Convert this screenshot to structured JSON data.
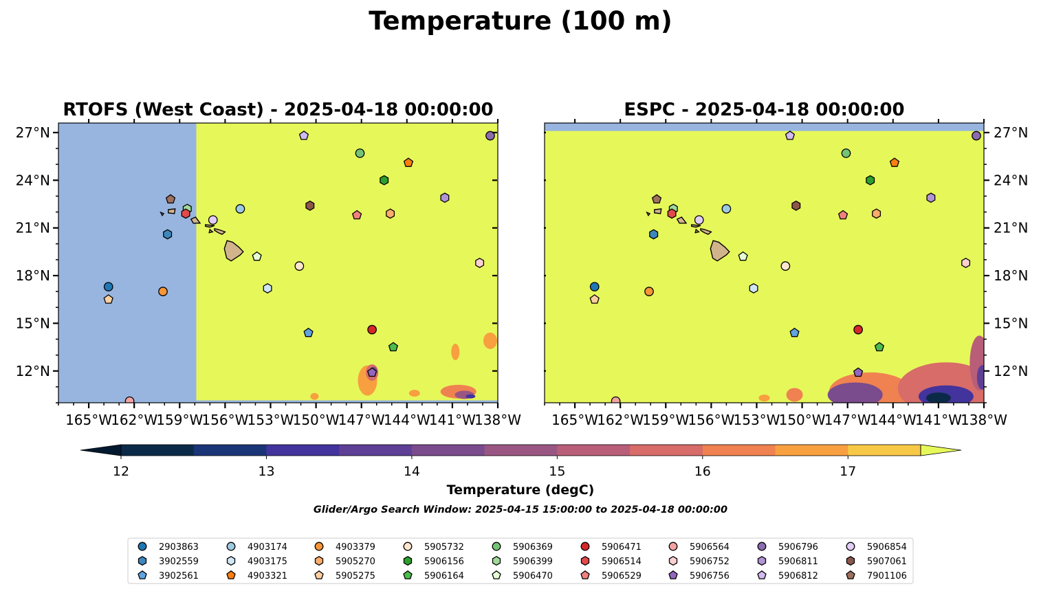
{
  "figure": {
    "title": "Temperature (100 m)",
    "colorbar_label": "Temperature (degC)",
    "search_window": "Glider/Argo Search Window: 2025-04-15 15:00:00 to 2025-04-18 00:00:00"
  },
  "colors": {
    "land": "#d2b48c",
    "nodata": "#98b5e0",
    "warm_max": "#e6f75a"
  },
  "chart_data": [
    {
      "type": "heatmap",
      "title": "RTOFS (West Coast) - 2025-04-18 00:00:00",
      "xlim": [
        -167,
        -138
      ],
      "ylim": [
        10,
        27.6
      ],
      "x_ticks": [
        "165°W",
        "162°W",
        "159°W",
        "156°W",
        "153°W",
        "150°W",
        "147°W",
        "144°W",
        "141°W",
        "138°W"
      ],
      "y_ticks": [
        "27°N",
        "24°N",
        "21°N",
        "18°N",
        "15°N",
        "12°N"
      ],
      "model_domain_west_edge_lon": -157.9,
      "dominant_value": ">17.5"
    },
    {
      "type": "heatmap",
      "title": "ESPC - 2025-04-18 00:00:00",
      "xlim": [
        -167,
        -138
      ],
      "ylim": [
        10,
        27.6
      ],
      "x_ticks": [
        "165°W",
        "162°W",
        "159°W",
        "156°W",
        "153°W",
        "150°W",
        "147°W",
        "144°W",
        "141°W",
        "138°W"
      ],
      "y_ticks": [
        "27°N",
        "24°N",
        "21°N",
        "18°N",
        "15°N",
        "12°N"
      ],
      "dominant_value": ">17.5"
    }
  ],
  "colorbar": {
    "min": 11.75,
    "max": 17.5,
    "ticks": [
      "12",
      "13",
      "14",
      "15",
      "16",
      "17"
    ],
    "levels": [
      {
        "from": 12.0,
        "to": 12.5,
        "color": "#0b2a48"
      },
      {
        "from": 12.5,
        "to": 13.0,
        "color": "#1a3478"
      },
      {
        "from": 13.0,
        "to": 13.5,
        "color": "#43339c"
      },
      {
        "from": 13.5,
        "to": 14.0,
        "color": "#5e3f96"
      },
      {
        "from": 14.0,
        "to": 14.5,
        "color": "#7a4b8d"
      },
      {
        "from": 14.5,
        "to": 15.0,
        "color": "#9a5683"
      },
      {
        "from": 15.0,
        "to": 15.5,
        "color": "#b85e78"
      },
      {
        "from": 15.5,
        "to": 16.0,
        "color": "#d76c68"
      },
      {
        "from": 16.0,
        "to": 16.5,
        "color": "#ef8250"
      },
      {
        "from": 16.5,
        "to": 17.0,
        "color": "#f89f40"
      },
      {
        "from": 17.0,
        "to": 17.5,
        "color": "#f7c846"
      }
    ],
    "under_color": "#03192f",
    "over_color": "#e6f75a"
  },
  "floats": [
    {
      "id": "2903863",
      "marker": "circle",
      "color": "#1f77b4",
      "lon": -163.7,
      "lat": 17.3
    },
    {
      "id": "3902559",
      "marker": "hexagon",
      "color": "#3d87bd",
      "lon": -159.8,
      "lat": 20.6
    },
    {
      "id": "3902561",
      "marker": "pentagon",
      "color": "#5fa4e0",
      "lon": -150.5,
      "lat": 14.4
    },
    {
      "id": "4903174",
      "marker": "circle",
      "color": "#9ecae1",
      "lon": -155.0,
      "lat": 22.2
    },
    {
      "id": "4903175",
      "marker": "hexagon",
      "color": "#cfe6f5",
      "lon": -153.2,
      "lat": 17.2
    },
    {
      "id": "4903321",
      "marker": "pentagon",
      "color": "#ff7f0e",
      "lon": -143.9,
      "lat": 25.1
    },
    {
      "id": "4903379",
      "marker": "circle",
      "color": "#f89536",
      "lon": -160.1,
      "lat": 17.0
    },
    {
      "id": "5905270",
      "marker": "hexagon",
      "color": "#fdad6b",
      "lon": -145.1,
      "lat": 21.9
    },
    {
      "id": "5905275",
      "marker": "pentagon",
      "color": "#fdd0a2",
      "lon": -163.7,
      "lat": 16.5
    },
    {
      "id": "5905732",
      "marker": "circle",
      "color": "#fee6ce",
      "lon": -151.1,
      "lat": 18.6
    },
    {
      "id": "5906156",
      "marker": "hexagon",
      "color": "#2ca02c",
      "lon": -145.5,
      "lat": 24.0
    },
    {
      "id": "5906164",
      "marker": "pentagon",
      "color": "#4dbb4d",
      "lon": -144.9,
      "lat": 13.5
    },
    {
      "id": "5906369",
      "marker": "circle",
      "color": "#74c476",
      "lon": -147.1,
      "lat": 25.7
    },
    {
      "id": "5906399",
      "marker": "hexagon",
      "color": "#a1d99b",
      "lon": -158.5,
      "lat": 22.2
    },
    {
      "id": "5906470",
      "marker": "pentagon",
      "color": "#e5ffd5",
      "lon": -153.9,
      "lat": 19.2
    },
    {
      "id": "5906471",
      "marker": "circle",
      "color": "#d62728",
      "lon": -146.3,
      "lat": 14.6
    },
    {
      "id": "5906514",
      "marker": "hexagon",
      "color": "#e34a4a",
      "lon": -158.6,
      "lat": 21.9
    },
    {
      "id": "5906529",
      "marker": "pentagon",
      "color": "#f08080",
      "lon": -147.3,
      "lat": 21.8
    },
    {
      "id": "5906564",
      "marker": "circle",
      "color": "#f4a3a3",
      "lon": -162.3,
      "lat": 10.1
    },
    {
      "id": "5906752",
      "marker": "hexagon",
      "color": "#fbd0d0",
      "lon": -139.2,
      "lat": 18.8
    },
    {
      "id": "5906756",
      "marker": "pentagon",
      "color": "#9467bd",
      "lon": -146.3,
      "lat": 11.9
    },
    {
      "id": "5906796",
      "marker": "circle",
      "color": "#8c6bb1",
      "lon": -138.5,
      "lat": 26.8
    },
    {
      "id": "5906811",
      "marker": "hexagon",
      "color": "#b294d6",
      "lon": -141.5,
      "lat": 22.9
    },
    {
      "id": "5906812",
      "marker": "pentagon",
      "color": "#d2b9f0",
      "lon": -150.8,
      "lat": 26.8
    },
    {
      "id": "5906854",
      "marker": "circle",
      "color": "#e2cdf7",
      "lon": -156.8,
      "lat": 21.5
    },
    {
      "id": "5907061",
      "marker": "hexagon",
      "color": "#8c564b",
      "lon": -150.4,
      "lat": 22.4
    },
    {
      "id": "7901106",
      "marker": "pentagon",
      "color": "#a0705f",
      "lon": -159.6,
      "lat": 22.8
    }
  ]
}
